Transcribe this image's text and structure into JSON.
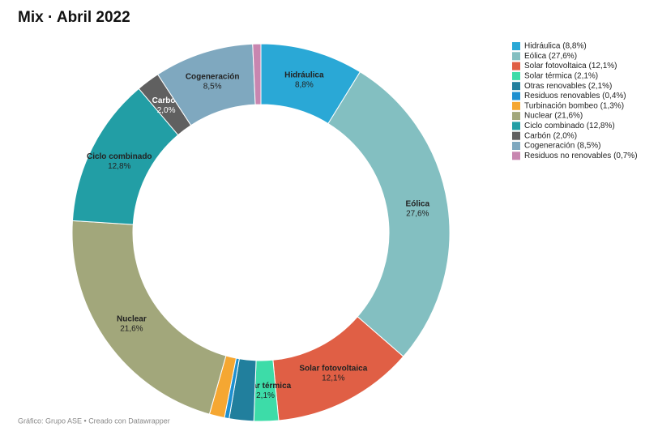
{
  "chart_data": {
    "type": "donut",
    "title": "Mix · Abril 2022",
    "categories": [
      "Hidráulica",
      "Eólica",
      "Solar fotovoltaica",
      "Solar térmica",
      "Otras renovables",
      "Residuos renovables",
      "Turbinación bombeo",
      "Nuclear",
      "Ciclo combinado",
      "Carbón",
      "Cogeneración",
      "Residuos no renovables"
    ],
    "values": [
      8.8,
      27.6,
      12.1,
      2.1,
      2.1,
      0.4,
      1.3,
      21.6,
      12.8,
      2.0,
      8.5,
      0.7
    ],
    "value_labels": [
      "8,8%",
      "27,6%",
      "12,1%",
      "2,1%",
      "2,1%",
      "0,4%",
      "1,3%",
      "21,6%",
      "12,8%",
      "2,0%",
      "8,5%",
      "0,7%"
    ],
    "legend_labels": [
      "Hidráulica (8,8%)",
      "Eólica (27,6%)",
      "Solar fotovoltaica (12,1%)",
      "Solar térmica (2,1%)",
      "Otras renovables (2,1%)",
      "Residuos renovables (0,4%)",
      "Turbinación bombeo (1,3%)",
      "Nuclear (21,6%)",
      "Ciclo combinado (12,8%)",
      "Carbón (2,0%)",
      "Cogeneración (8,5%)",
      "Residuos no renovables (0,7%)"
    ],
    "colors": [
      "#2aa8d6",
      "#83bfc1",
      "#e05f45",
      "#3ddca8",
      "#217f9d",
      "#1e90d0",
      "#f5a732",
      "#a2a77b",
      "#229ea5",
      "#606060",
      "#7fa8bf",
      "#c886b0"
    ],
    "footer": "Gráfico: Grupo ASE • Creado con Datawrapper"
  }
}
